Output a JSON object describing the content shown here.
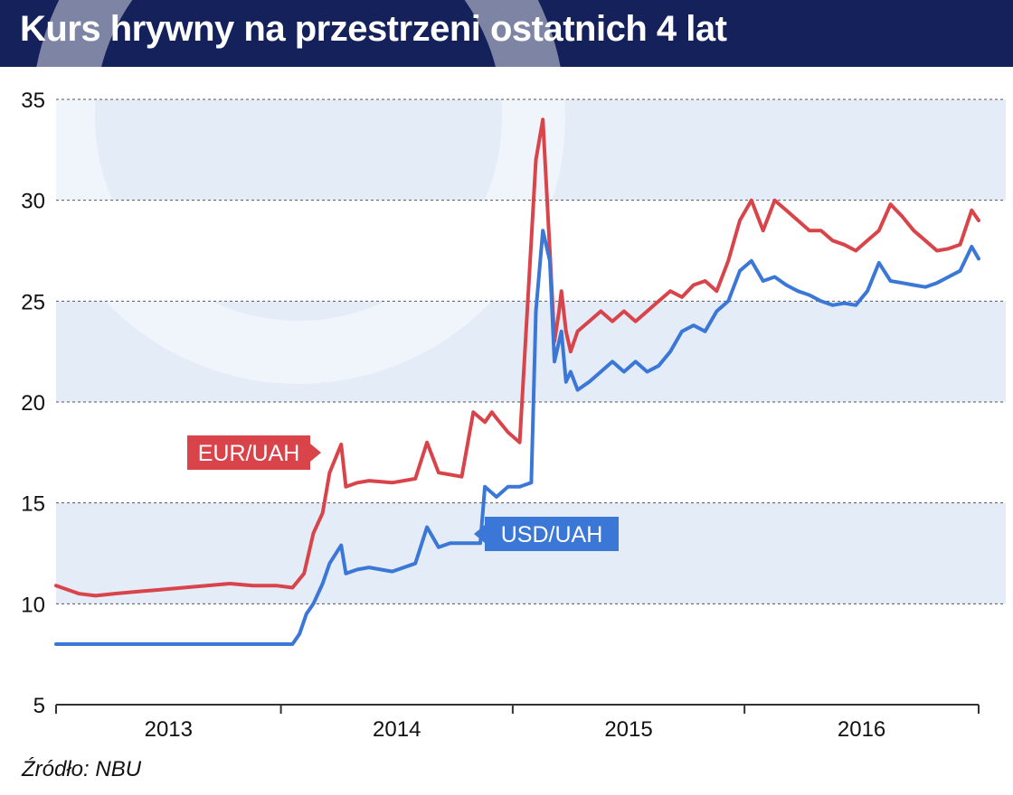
{
  "header": {
    "title": "Kurs hrywny na przestrzeni ostatnich 4 lat"
  },
  "footer": {
    "source": "Źródło: NBU"
  },
  "colors": {
    "header_bg": "#14215a",
    "eur": "#d9434a",
    "usd": "#3a77d6",
    "band": "#e4ecf8"
  },
  "chart_data": {
    "type": "line",
    "title": "Kurs hrywny na przestrzeni ostatnich 4 lat",
    "xlabel": "",
    "ylabel": "",
    "x_tick_labels": [
      "2013",
      "2014",
      "2015",
      "2016"
    ],
    "xlim": [
      2012.95,
      2016.93
    ],
    "ylim": [
      5,
      35
    ],
    "y_ticks": [
      5,
      10,
      15,
      20,
      25,
      30,
      35
    ],
    "grid": true,
    "series": [
      {
        "name": "EUR/UAH",
        "color": "#d9434a",
        "x": [
          2012.95,
          2013.05,
          2013.12,
          2013.2,
          2013.3,
          2013.4,
          2013.5,
          2013.6,
          2013.7,
          2013.8,
          2013.9,
          2013.97,
          2014.02,
          2014.06,
          2014.1,
          2014.13,
          2014.18,
          2014.2,
          2014.25,
          2014.3,
          2014.4,
          2014.5,
          2014.55,
          2014.6,
          2014.65,
          2014.7,
          2014.75,
          2014.8,
          2014.83,
          2014.85,
          2014.9,
          2014.95,
          2015.0,
          2015.02,
          2015.05,
          2015.08,
          2015.1,
          2015.12,
          2015.13,
          2015.15,
          2015.17,
          2015.2,
          2015.25,
          2015.3,
          2015.35,
          2015.4,
          2015.45,
          2015.5,
          2015.55,
          2015.6,
          2015.65,
          2015.7,
          2015.75,
          2015.8,
          2015.85,
          2015.9,
          2015.95,
          2016.0,
          2016.05,
          2016.1,
          2016.15,
          2016.2,
          2016.25,
          2016.3,
          2016.35,
          2016.4,
          2016.45,
          2016.5,
          2016.55,
          2016.6,
          2016.65,
          2016.7,
          2016.75,
          2016.8,
          2016.85,
          2016.9,
          2016.93
        ],
        "y": [
          10.9,
          10.5,
          10.4,
          10.5,
          10.6,
          10.7,
          10.8,
          10.9,
          11.0,
          10.9,
          10.9,
          10.8,
          11.5,
          13.5,
          14.5,
          16.5,
          17.9,
          15.8,
          16.0,
          16.1,
          16.0,
          16.2,
          18.0,
          16.5,
          16.4,
          16.3,
          19.5,
          19.0,
          19.5,
          19.2,
          18.5,
          18.0,
          28.0,
          32.0,
          34.0,
          27.5,
          23.0,
          24.5,
          25.5,
          23.5,
          22.5,
          23.5,
          24.0,
          24.5,
          24.0,
          24.5,
          24.0,
          24.5,
          25.0,
          25.5,
          25.2,
          25.8,
          26.0,
          25.5,
          27.0,
          29.0,
          30.0,
          28.5,
          30.0,
          29.5,
          29.0,
          28.5,
          28.5,
          28.0,
          27.8,
          27.5,
          28.0,
          28.5,
          29.8,
          29.2,
          28.5,
          28.0,
          27.5,
          27.6,
          27.8,
          29.5,
          29.0
        ]
      },
      {
        "name": "USD/UAH",
        "color": "#3a77d6",
        "x": [
          2012.95,
          2013.3,
          2013.6,
          2013.97,
          2014.0,
          2014.03,
          2014.06,
          2014.1,
          2014.13,
          2014.18,
          2014.2,
          2014.25,
          2014.3,
          2014.4,
          2014.5,
          2014.55,
          2014.6,
          2014.65,
          2014.7,
          2014.78,
          2014.8,
          2014.83,
          2014.85,
          2014.9,
          2014.95,
          2015.0,
          2015.02,
          2015.05,
          2015.08,
          2015.1,
          2015.12,
          2015.13,
          2015.15,
          2015.17,
          2015.2,
          2015.25,
          2015.3,
          2015.35,
          2015.4,
          2015.45,
          2015.5,
          2015.55,
          2015.6,
          2015.65,
          2015.7,
          2015.75,
          2015.8,
          2015.85,
          2015.9,
          2015.95,
          2016.0,
          2016.05,
          2016.1,
          2016.15,
          2016.2,
          2016.25,
          2016.3,
          2016.35,
          2016.4,
          2016.45,
          2016.5,
          2016.55,
          2016.6,
          2016.65,
          2016.7,
          2016.75,
          2016.8,
          2016.85,
          2016.9,
          2016.93
        ],
        "y": [
          8.0,
          8.0,
          8.0,
          8.0,
          8.5,
          9.5,
          10.0,
          11.0,
          12.0,
          12.9,
          11.5,
          11.7,
          11.8,
          11.6,
          12.0,
          13.8,
          12.8,
          13.0,
          13.0,
          13.0,
          15.8,
          15.5,
          15.3,
          15.8,
          15.8,
          16.0,
          24.5,
          28.5,
          27.0,
          22.0,
          23.0,
          23.5,
          21.0,
          21.5,
          20.6,
          21.0,
          21.5,
          22.0,
          21.5,
          22.0,
          21.5,
          21.8,
          22.5,
          23.5,
          23.8,
          23.5,
          24.5,
          25.0,
          26.5,
          27.0,
          26.0,
          26.2,
          25.8,
          25.5,
          25.3,
          25.0,
          24.8,
          24.9,
          24.8,
          25.5,
          26.9,
          26.0,
          25.9,
          25.8,
          25.7,
          25.9,
          26.2,
          26.5,
          27.7,
          27.1
        ]
      }
    ],
    "callouts": [
      {
        "series": "EUR/UAH",
        "label": "EUR/UAH",
        "color": "#d9434a"
      },
      {
        "series": "USD/UAH",
        "label": "USD/UAH",
        "color": "#3a77d6"
      }
    ]
  }
}
